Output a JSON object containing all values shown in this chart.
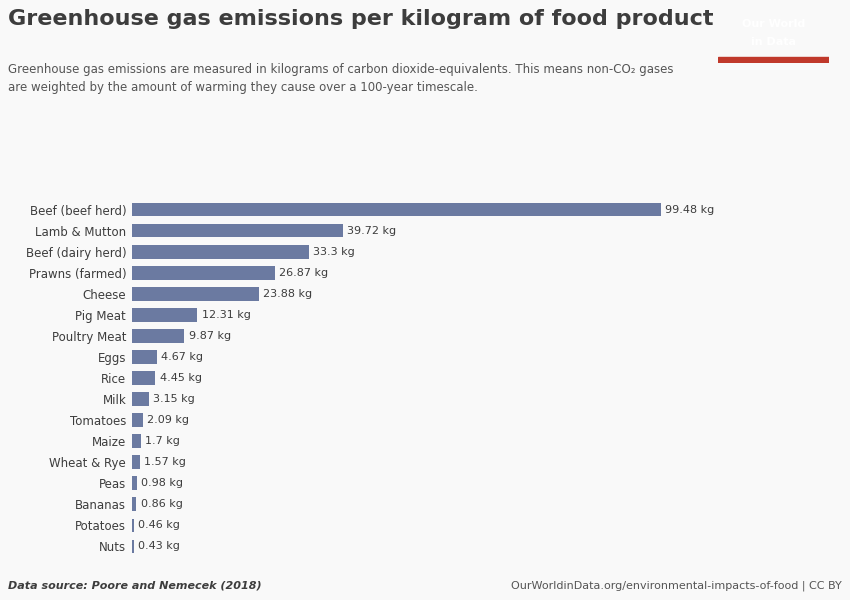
{
  "title": "Greenhouse gas emissions per kilogram of food product",
  "subtitle": "Greenhouse gas emissions are measured in kilograms of carbon dioxide-equivalents. This means non-CO₂ gases\nare weighted by the amount of warming they cause over a 100-year timescale.",
  "categories": [
    "Nuts",
    "Potatoes",
    "Bananas",
    "Peas",
    "Wheat & Rye",
    "Maize",
    "Tomatoes",
    "Milk",
    "Rice",
    "Eggs",
    "Poultry Meat",
    "Pig Meat",
    "Cheese",
    "Prawns (farmed)",
    "Beef (dairy herd)",
    "Lamb & Mutton",
    "Beef (beef herd)"
  ],
  "values": [
    0.43,
    0.46,
    0.86,
    0.98,
    1.57,
    1.7,
    2.09,
    3.15,
    4.45,
    4.67,
    9.87,
    12.31,
    23.88,
    26.87,
    33.3,
    39.72,
    99.48
  ],
  "labels": [
    "0.43 kg",
    "0.46 kg",
    "0.86 kg",
    "0.98 kg",
    "1.57 kg",
    "1.7 kg",
    "2.09 kg",
    "3.15 kg",
    "4.45 kg",
    "4.67 kg",
    "9.87 kg",
    "12.31 kg",
    "23.88 kg",
    "26.87 kg",
    "33.3 kg",
    "39.72 kg",
    "99.48 kg"
  ],
  "bar_color": "#6b7aa1",
  "background_color": "#f9f9f9",
  "text_color": "#3d3d3d",
  "subtitle_color": "#555555",
  "data_source": "Data source: Poore and Nemecek (2018)",
  "url": "OurWorldinData.org/environmental-impacts-of-food | CC BY",
  "logo_bg": "#1a3a5c",
  "logo_text_line1": "Our World",
  "logo_text_line2": "in Data",
  "logo_accent": "#c0392b"
}
